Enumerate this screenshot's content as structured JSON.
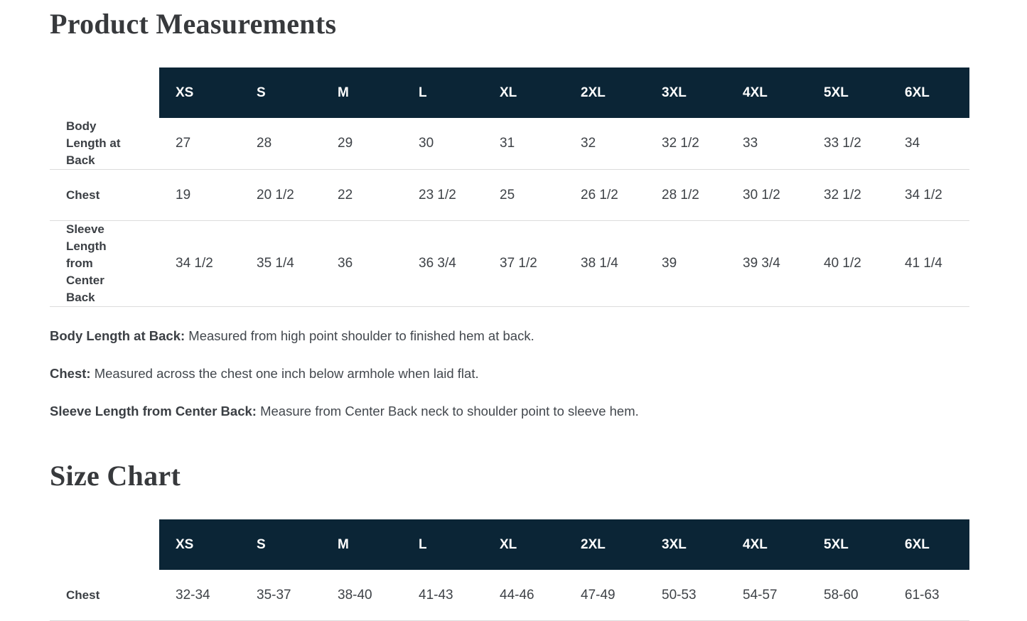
{
  "colors": {
    "header_bg": "#0b2536",
    "header_text": "#ffffff",
    "body_text": "#3e4247",
    "divider": "#dcdcdc"
  },
  "product_measurements": {
    "title": "Product Measurements",
    "columns": [
      "XS",
      "S",
      "M",
      "L",
      "XL",
      "2XL",
      "3XL",
      "4XL",
      "5XL",
      "6XL"
    ],
    "rows": [
      {
        "label": "Body Length at Back",
        "values": [
          "27",
          "28",
          "29",
          "30",
          "31",
          "32",
          "32 1/2",
          "33",
          "33 1/2",
          "34"
        ]
      },
      {
        "label": "Chest",
        "values": [
          "19",
          "20 1/2",
          "22",
          "23 1/2",
          "25",
          "26 1/2",
          "28 1/2",
          "30 1/2",
          "32 1/2",
          "34 1/2"
        ]
      },
      {
        "label": "Sleeve Length from Center Back",
        "values": [
          "34 1/2",
          "35 1/4",
          "36",
          "36 3/4",
          "37 1/2",
          "38 1/4",
          "39",
          "39 3/4",
          "40 1/2",
          "41 1/4"
        ]
      }
    ],
    "notes": [
      {
        "term": "Body Length at Back:",
        "text": " Measured from high point shoulder to finished hem at back."
      },
      {
        "term": "Chest:",
        "text": " Measured across the chest one inch below armhole when laid flat."
      },
      {
        "term": "Sleeve Length from Center Back:",
        "text": " Measure from Center Back neck to shoulder point to sleeve hem."
      }
    ]
  },
  "size_chart": {
    "title": "Size Chart",
    "columns": [
      "XS",
      "S",
      "M",
      "L",
      "XL",
      "2XL",
      "3XL",
      "4XL",
      "5XL",
      "6XL"
    ],
    "rows": [
      {
        "label": "Chest",
        "values": [
          "32-34",
          "35-37",
          "38-40",
          "41-43",
          "44-46",
          "47-49",
          "50-53",
          "54-57",
          "58-60",
          "61-63"
        ]
      }
    ]
  }
}
